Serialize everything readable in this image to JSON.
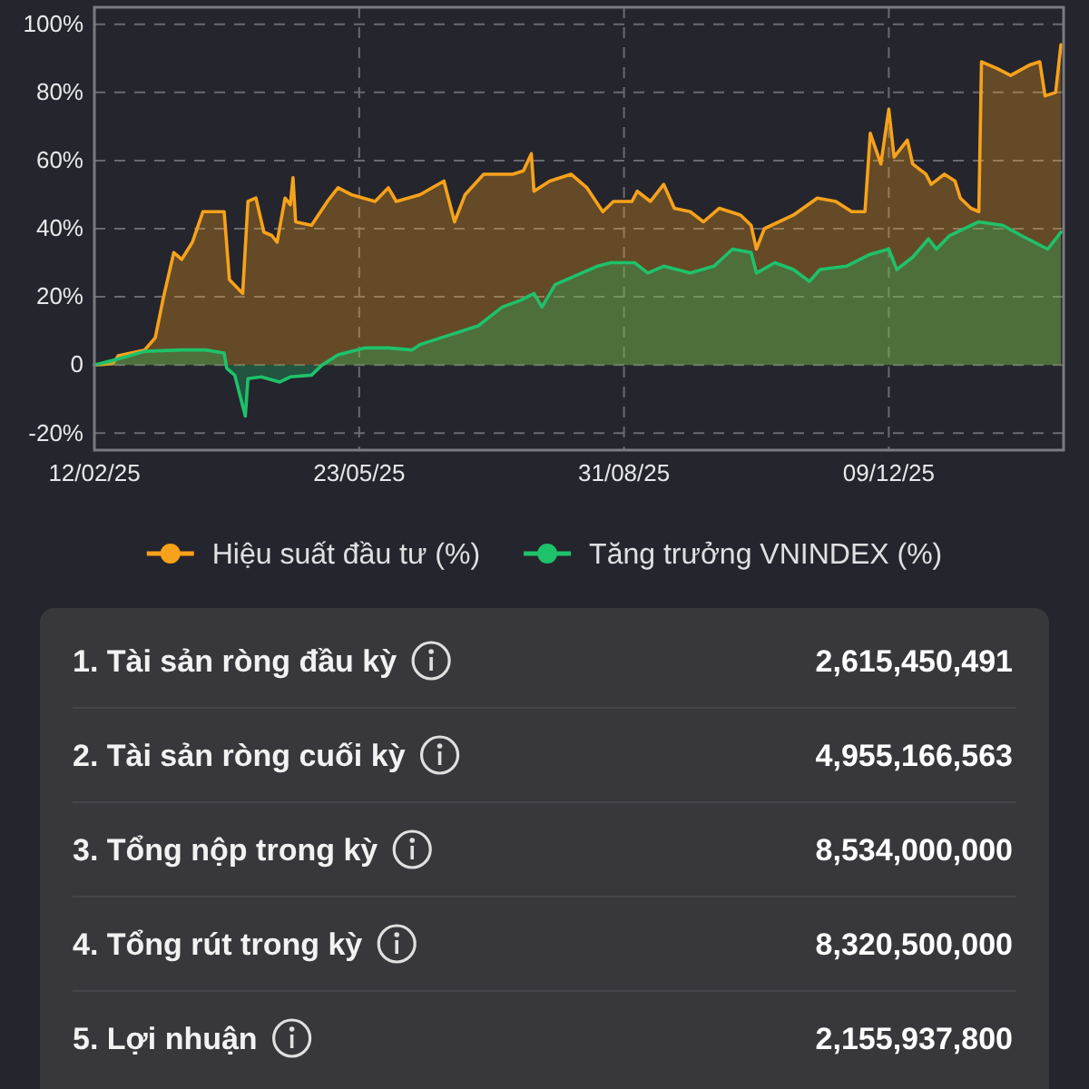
{
  "chart_data": [
    {
      "type": "area",
      "xlim": [
        "2025-02-12",
        "2026-02-13"
      ],
      "xticks": [
        {
          "value": "2025-02-12",
          "label": "12/02/25"
        },
        {
          "value": "2025-05-23",
          "label": "23/05/25"
        },
        {
          "value": "2025-08-31",
          "label": "31/08/25"
        },
        {
          "value": "2025-12-09",
          "label": "09/12/25"
        }
      ],
      "ylim": [
        -25,
        105
      ],
      "yticks": [
        {
          "value": -20,
          "label": "-20%"
        },
        0,
        {
          "value": 20,
          "label": "20%"
        },
        {
          "value": 40,
          "label": "40%"
        },
        {
          "value": 60,
          "label": "60%"
        },
        {
          "value": 80,
          "label": "80%"
        },
        {
          "value": 100,
          "label": "100%"
        }
      ],
      "grid": true,
      "legend": "bottom",
      "series": [
        {
          "name": "Hiệu suất đầu tư (%)",
          "color": "#f7a21b",
          "x": [
            "2025-02-12",
            "2025-02-19",
            "2025-02-21",
            "2025-03-03",
            "2025-03-07",
            "2025-03-10",
            "2025-03-14",
            "2025-03-17",
            "2025-03-21",
            "2025-03-25",
            "2025-04-02",
            "2025-04-04",
            "2025-04-09",
            "2025-04-11",
            "2025-04-14",
            "2025-04-17",
            "2025-04-20",
            "2025-04-22",
            "2025-04-25",
            "2025-04-27",
            "2025-04-28",
            "2025-04-29",
            "2025-05-05",
            "2025-05-11",
            "2025-05-15",
            "2025-05-20",
            "2025-05-29",
            "2025-06-03",
            "2025-06-06",
            "2025-06-15",
            "2025-06-24",
            "2025-06-28",
            "2025-07-02",
            "2025-07-09",
            "2025-07-20",
            "2025-07-24",
            "2025-07-27",
            "2025-07-28",
            "2025-08-03",
            "2025-08-11",
            "2025-08-17",
            "2025-08-23",
            "2025-08-27",
            "2025-09-03",
            "2025-09-05",
            "2025-09-10",
            "2025-09-15",
            "2025-09-19",
            "2025-09-25",
            "2025-09-30",
            "2025-10-06",
            "2025-10-14",
            "2025-10-18",
            "2025-10-20",
            "2025-10-23",
            "2025-11-03",
            "2025-11-12",
            "2025-11-19",
            "2025-11-25",
            "2025-11-30",
            "2025-12-02",
            "2025-12-06",
            "2025-12-09",
            "2025-12-11",
            "2025-12-16",
            "2025-12-18",
            "2025-12-23",
            "2025-12-25",
            "2025-12-30",
            "2026-01-03",
            "2026-01-05",
            "2026-01-09",
            "2026-01-12",
            "2026-01-13",
            "2026-01-19",
            "2026-01-24",
            "2026-01-31",
            "2026-02-04",
            "2026-02-06",
            "2026-02-10",
            "2026-02-12"
          ],
          "values": [
            0,
            0.4,
            2.7,
            4.4,
            8,
            19.5,
            33,
            31,
            36,
            45,
            45,
            25,
            21,
            48,
            49,
            39,
            38,
            36,
            49,
            47,
            55,
            42,
            41,
            48,
            52,
            50,
            48,
            52,
            48,
            50,
            54,
            42,
            50,
            56,
            56,
            57,
            62,
            51,
            54,
            56,
            52,
            45,
            48,
            48,
            51,
            48,
            53,
            46,
            45,
            42,
            46,
            44,
            41,
            34,
            40,
            44,
            49,
            48,
            45,
            45,
            68,
            59,
            75,
            61,
            66,
            59,
            56,
            53,
            56,
            54,
            49,
            46,
            45,
            89,
            87,
            85,
            88,
            89,
            79,
            80,
            94
          ]
        },
        {
          "name": "Tăng trưởng VNINDEX (%)",
          "color": "#1ec26a",
          "x": [
            "2025-02-12",
            "2025-02-22",
            "2025-03-03",
            "2025-03-17",
            "2025-03-26",
            "2025-04-02",
            "2025-04-03",
            "2025-04-06",
            "2025-04-10",
            "2025-04-11",
            "2025-04-16",
            "2025-04-23",
            "2025-04-27",
            "2025-05-05",
            "2025-05-09",
            "2025-05-15",
            "2025-05-25",
            "2025-06-03",
            "2025-06-12",
            "2025-06-15",
            "2025-06-27",
            "2025-07-07",
            "2025-07-16",
            "2025-07-23",
            "2025-07-28",
            "2025-07-31",
            "2025-08-05",
            "2025-08-15",
            "2025-08-21",
            "2025-08-26",
            "2025-09-04",
            "2025-09-09",
            "2025-09-15",
            "2025-09-25",
            "2025-10-04",
            "2025-10-11",
            "2025-10-18",
            "2025-10-20",
            "2025-10-27",
            "2025-11-03",
            "2025-11-09",
            "2025-11-13",
            "2025-11-23",
            "2025-12-02",
            "2025-12-09",
            "2025-12-12",
            "2025-12-18",
            "2025-12-24",
            "2025-12-27",
            "2026-01-01",
            "2026-01-12",
            "2026-01-21",
            "2026-01-28",
            "2026-02-07",
            "2026-02-12"
          ],
          "values": [
            0,
            2,
            4,
            4.4,
            4.4,
            3.5,
            -1,
            -3,
            -15,
            -4,
            -3.5,
            -5,
            -3.5,
            -3,
            0,
            3,
            5,
            5,
            4.4,
            6,
            9,
            11.5,
            17,
            19,
            21,
            17,
            23.6,
            27,
            29,
            30,
            30,
            27,
            29,
            27,
            29,
            34,
            33,
            27,
            30,
            28,
            24.5,
            28,
            29,
            32.5,
            34,
            28,
            31.6,
            37,
            34,
            38,
            42,
            41,
            38,
            34,
            39
          ]
        }
      ]
    },
    {
      "type": "other",
      "categories": [
        "1. Tài sản ròng đầu kỳ",
        "2. Tài sản ròng cuối kỳ",
        "3. Tổng nộp trong kỳ",
        "4. Tổng rút trong kỳ",
        "5. Lợi nhuận"
      ],
      "value_labels": [
        "2,615,450,491",
        "4,955,166,563",
        "8,534,000,000",
        "8,320,500,000",
        "2,155,937,800"
      ]
    }
  ]
}
